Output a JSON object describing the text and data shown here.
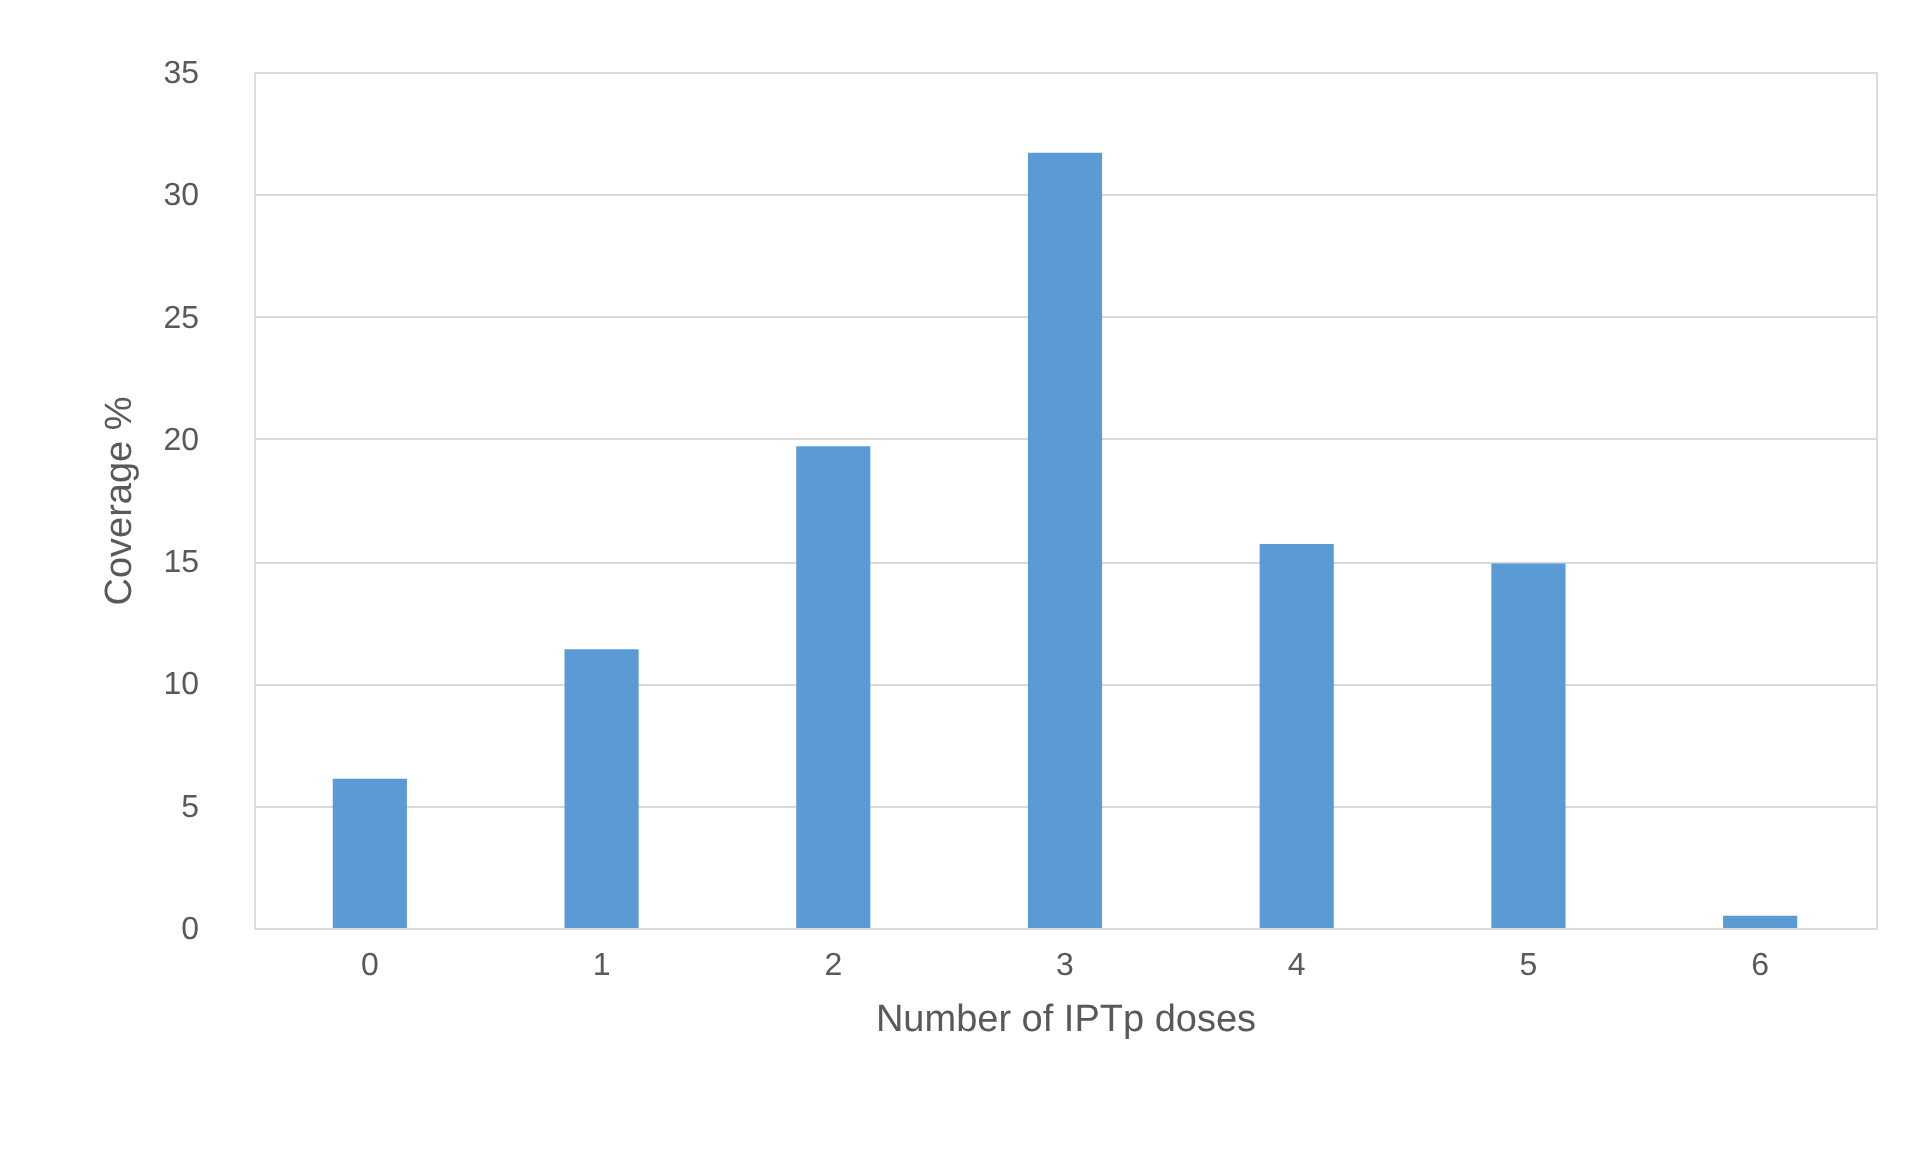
{
  "chart_data": {
    "type": "bar",
    "xlabel": "Number of IPTp doses",
    "ylabel": "Coverage %",
    "categories": [
      "0",
      "1",
      "2",
      "3",
      "4",
      "5",
      "6"
    ],
    "values": [
      6.1,
      11.4,
      19.7,
      31.7,
      15.7,
      14.9,
      0.5
    ],
    "color": "#5b9bd5",
    "ylim": [
      0,
      35
    ],
    "yticks": [
      0,
      5,
      10,
      15,
      20,
      25,
      30,
      35
    ],
    "grid": "y"
  }
}
